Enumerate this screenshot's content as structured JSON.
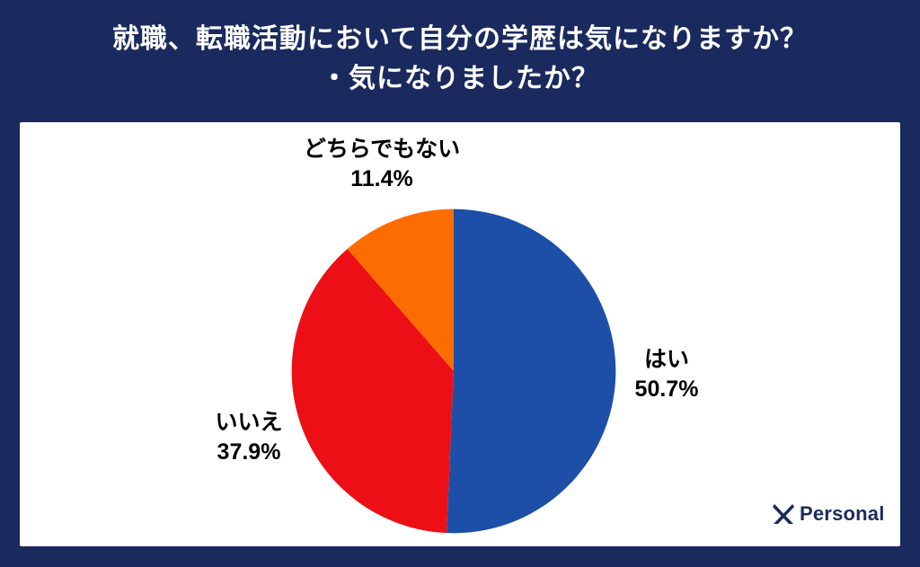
{
  "title": {
    "line1": "就職、転職活動において自分の学歴は気になりますか？",
    "line2": "・気になりましたか？"
  },
  "chart_data": {
    "type": "pie",
    "title": "就職、転職活動において自分の学歴は気になりますか？・気になりましたか？",
    "labels": [
      "はい",
      "いいえ",
      "どちらでもない"
    ],
    "values": [
      50.7,
      37.9,
      11.4
    ],
    "value_labels": [
      "50.7%",
      "37.9%",
      "11.4%"
    ],
    "colors": [
      "#1d4fa8",
      "#ec1016",
      "#fd6c00"
    ],
    "start_angle_deg": 0,
    "direction": "clockwise",
    "unit": "percent",
    "legend": "none-direct-labels"
  },
  "logo": {
    "text": "Personal",
    "icon": "x-mark"
  },
  "theme": {
    "background": "#1a2a5e",
    "panel": "#ffffff",
    "title_color": "#ffffff",
    "label_color": "#000000",
    "logo_color": "#1c2b5c"
  }
}
